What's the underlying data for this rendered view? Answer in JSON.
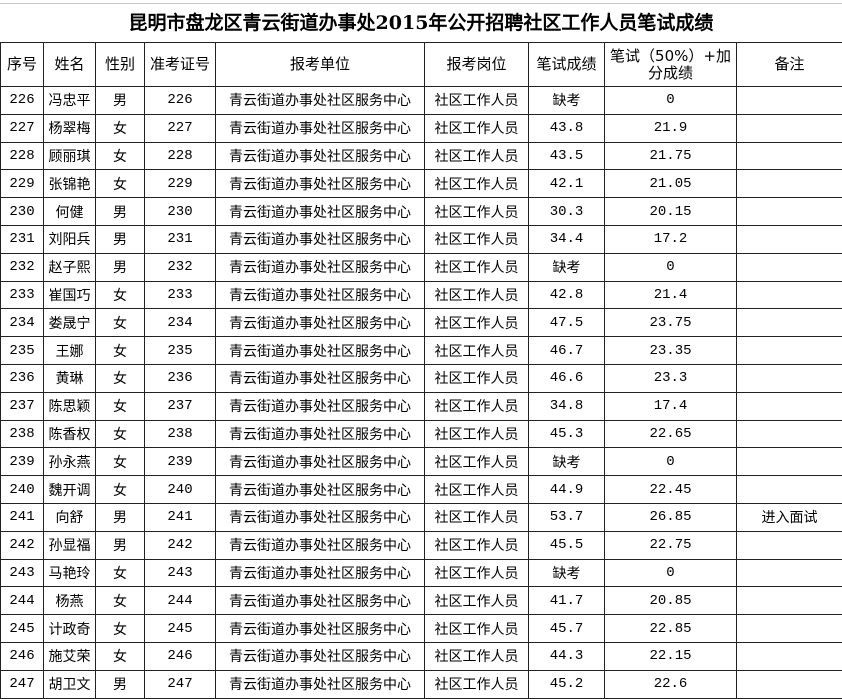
{
  "title": "昆明市盘龙区青云街道办事处2015年公开招聘社区工作人员笔试成绩",
  "columns": [
    "序号",
    "姓名",
    "性别",
    "准考证号",
    "报考单位",
    "报考岗位",
    "笔试成绩",
    "笔试（50%）+加分成绩",
    "备注"
  ],
  "rows": [
    [
      "226",
      "冯忠平",
      "男",
      "226",
      "青云街道办事处社区服务中心",
      "社区工作人员",
      "缺考",
      "0",
      ""
    ],
    [
      "227",
      "杨翠梅",
      "女",
      "227",
      "青云街道办事处社区服务中心",
      "社区工作人员",
      "43.8",
      "21.9",
      ""
    ],
    [
      "228",
      "顾丽琪",
      "女",
      "228",
      "青云街道办事处社区服务中心",
      "社区工作人员",
      "43.5",
      "21.75",
      ""
    ],
    [
      "229",
      "张锦艳",
      "女",
      "229",
      "青云街道办事处社区服务中心",
      "社区工作人员",
      "42.1",
      "21.05",
      ""
    ],
    [
      "230",
      "何健",
      "男",
      "230",
      "青云街道办事处社区服务中心",
      "社区工作人员",
      "30.3",
      "20.15",
      ""
    ],
    [
      "231",
      "刘阳兵",
      "男",
      "231",
      "青云街道办事处社区服务中心",
      "社区工作人员",
      "34.4",
      "17.2",
      ""
    ],
    [
      "232",
      "赵子熙",
      "男",
      "232",
      "青云街道办事处社区服务中心",
      "社区工作人员",
      "缺考",
      "0",
      ""
    ],
    [
      "233",
      "崔国巧",
      "女",
      "233",
      "青云街道办事处社区服务中心",
      "社区工作人员",
      "42.8",
      "21.4",
      ""
    ],
    [
      "234",
      "娄晟宁",
      "女",
      "234",
      "青云街道办事处社区服务中心",
      "社区工作人员",
      "47.5",
      "23.75",
      ""
    ],
    [
      "235",
      "王娜",
      "女",
      "235",
      "青云街道办事处社区服务中心",
      "社区工作人员",
      "46.7",
      "23.35",
      ""
    ],
    [
      "236",
      "黄琳",
      "女",
      "236",
      "青云街道办事处社区服务中心",
      "社区工作人员",
      "46.6",
      "23.3",
      ""
    ],
    [
      "237",
      "陈思颖",
      "女",
      "237",
      "青云街道办事处社区服务中心",
      "社区工作人员",
      "34.8",
      "17.4",
      ""
    ],
    [
      "238",
      "陈香权",
      "女",
      "238",
      "青云街道办事处社区服务中心",
      "社区工作人员",
      "45.3",
      "22.65",
      ""
    ],
    [
      "239",
      "孙永燕",
      "女",
      "239",
      "青云街道办事处社区服务中心",
      "社区工作人员",
      "缺考",
      "0",
      ""
    ],
    [
      "240",
      "魏开调",
      "女",
      "240",
      "青云街道办事处社区服务中心",
      "社区工作人员",
      "44.9",
      "22.45",
      ""
    ],
    [
      "241",
      "向舒",
      "男",
      "241",
      "青云街道办事处社区服务中心",
      "社区工作人员",
      "53.7",
      "26.85",
      "进入面试"
    ],
    [
      "242",
      "孙显福",
      "男",
      "242",
      "青云街道办事处社区服务中心",
      "社区工作人员",
      "45.5",
      "22.75",
      ""
    ],
    [
      "243",
      "马艳玲",
      "女",
      "243",
      "青云街道办事处社区服务中心",
      "社区工作人员",
      "缺考",
      "0",
      ""
    ],
    [
      "244",
      "杨燕",
      "女",
      "244",
      "青云街道办事处社区服务中心",
      "社区工作人员",
      "41.7",
      "20.85",
      ""
    ],
    [
      "245",
      "计政奇",
      "女",
      "245",
      "青云街道办事处社区服务中心",
      "社区工作人员",
      "45.7",
      "22.85",
      ""
    ],
    [
      "246",
      "施艾荣",
      "女",
      "246",
      "青云街道办事处社区服务中心",
      "社区工作人员",
      "44.3",
      "22.15",
      ""
    ],
    [
      "247",
      "胡卫文",
      "男",
      "247",
      "青云街道办事处社区服务中心",
      "社区工作人员",
      "45.2",
      "22.6",
      ""
    ]
  ]
}
